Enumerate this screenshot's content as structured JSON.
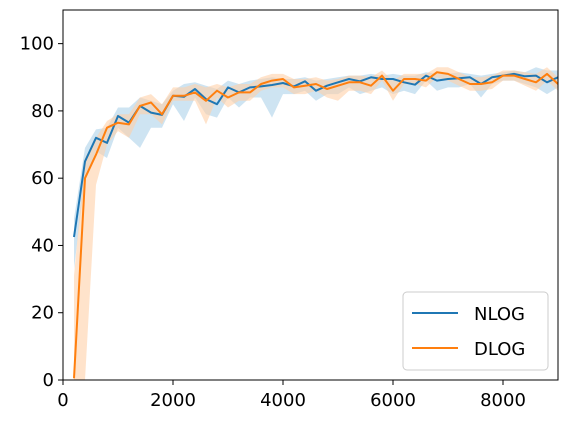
{
  "chart_data": {
    "type": "line",
    "title": "",
    "xlabel": "",
    "ylabel": "",
    "xlim": [
      0,
      9000
    ],
    "ylim": [
      0,
      110
    ],
    "xticks": [
      "0",
      "2000",
      "4000",
      "6000",
      "8000"
    ],
    "yticks": [
      "0",
      "20",
      "40",
      "60",
      "80",
      "100"
    ],
    "grid": false,
    "legend_position": "bottom-right",
    "series": [
      {
        "name": "NLOG",
        "color": "#1f77b4",
        "band_color": "#a6cde8",
        "x": [
          200,
          400,
          600,
          800,
          1000,
          1200,
          1400,
          1600,
          1800,
          2000,
          2200,
          2400,
          2600,
          2800,
          3000,
          3200,
          3400,
          3600,
          3800,
          4000,
          4200,
          4400,
          4600,
          4800,
          5000,
          5200,
          5400,
          5600,
          5800,
          6000,
          6200,
          6400,
          6600,
          6800,
          7000,
          7200,
          7400,
          7600,
          7800,
          8000,
          8200,
          8400,
          8600,
          8800,
          9000
        ],
        "values": [
          42.5,
          65,
          72,
          70.5,
          78.5,
          76.5,
          81.5,
          79.5,
          78.8,
          84.5,
          84.2,
          86.5,
          83.5,
          82,
          87,
          85.5,
          87,
          87.3,
          87.7,
          88.3,
          87.3,
          88.8,
          86,
          87.5,
          88.5,
          89.5,
          88.8,
          90,
          89.5,
          89.5,
          88.5,
          87.8,
          90.5,
          89,
          89.5,
          89.7,
          90,
          88,
          90,
          90.5,
          91,
          90.3,
          90.5,
          88.5,
          90
        ],
        "upper": [
          48,
          69,
          74.5,
          75,
          81,
          81,
          84,
          83,
          82,
          86,
          88,
          88.5,
          87.5,
          86.5,
          89,
          88,
          89,
          89.5,
          90,
          89.5,
          89.5,
          90,
          89,
          89.5,
          90,
          90.5,
          90.5,
          91,
          90.5,
          91,
          90.5,
          90.5,
          91.5,
          91,
          91,
          91.5,
          91,
          90.5,
          91,
          91.5,
          92,
          91.5,
          93,
          92,
          92
        ],
        "lower": [
          33,
          60,
          68,
          66,
          75,
          72,
          69,
          75,
          75,
          82,
          77,
          84,
          79,
          78,
          84,
          81,
          84,
          84,
          78,
          85,
          85,
          86,
          83,
          85,
          85,
          87,
          85,
          86,
          87,
          85,
          86,
          85,
          89,
          86,
          87,
          87,
          88,
          84,
          88,
          89,
          89,
          88,
          87,
          85,
          87
        ]
      },
      {
        "name": "DLOG",
        "color": "#ff7f0e",
        "band_color": "#ffd1a8",
        "x": [
          200,
          400,
          600,
          800,
          1000,
          1200,
          1400,
          1600,
          1800,
          2000,
          2200,
          2400,
          2600,
          2800,
          3000,
          3200,
          3400,
          3600,
          3800,
          4000,
          4200,
          4400,
          4600,
          4800,
          5000,
          5200,
          5400,
          5600,
          5800,
          6000,
          6200,
          6400,
          6600,
          6800,
          7000,
          7200,
          7400,
          7600,
          7800,
          8000,
          8200,
          8400,
          8600,
          8800,
          9000
        ],
        "values": [
          0.5,
          60,
          67,
          75,
          76.5,
          76,
          81.5,
          82.5,
          79,
          84.5,
          84.5,
          85.5,
          83,
          86,
          84,
          85.5,
          85.5,
          88,
          89,
          89.5,
          87,
          87.5,
          88,
          86.5,
          87.5,
          88.5,
          88.5,
          87.5,
          90.5,
          86,
          89.5,
          89.5,
          89,
          91.5,
          91,
          89.5,
          88,
          88,
          88.5,
          90.5,
          90.5,
          89.5,
          88.5,
          91,
          88
        ],
        "upper": [
          31,
          66,
          72,
          77,
          79,
          79,
          84,
          85,
          82,
          87,
          87,
          88,
          87,
          88,
          87,
          88,
          88,
          90,
          91,
          91,
          89.5,
          89.5,
          90,
          89,
          89.5,
          90.5,
          90.5,
          90,
          92,
          89,
          91,
          91,
          91,
          93,
          93,
          91.5,
          90,
          90,
          90.5,
          92,
          92,
          91.5,
          91,
          93,
          90
        ],
        "lower": [
          0,
          0,
          58,
          70,
          74,
          72,
          79,
          79,
          76,
          83,
          83,
          83,
          76,
          84,
          81,
          83,
          83,
          86,
          87,
          87,
          85,
          85,
          86,
          84,
          83,
          86,
          86,
          85,
          89,
          83,
          88,
          88,
          87,
          90,
          89,
          87.5,
          86,
          86,
          86.5,
          89,
          89,
          87.5,
          86,
          89,
          86
        ]
      }
    ]
  }
}
